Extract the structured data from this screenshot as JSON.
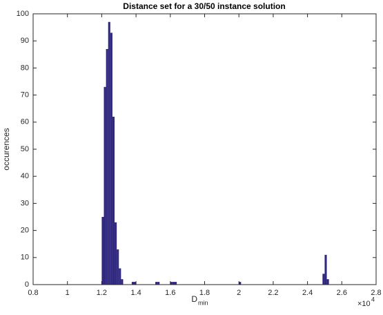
{
  "chart_data": {
    "type": "histogram",
    "title": "Distance set for a 30/50 instance solution",
    "xlabel": {
      "text": "D",
      "subscript": "min"
    },
    "ylabel": "occurences",
    "x_multiplier": {
      "base": "×10",
      "power": 4
    },
    "color": "#31297f",
    "bins": [
      1.2,
      1.2125,
      1.225,
      1.2375,
      1.25,
      1.2625,
      1.275,
      1.2875,
      1.3,
      1.3125,
      1.325,
      1.3375,
      1.35,
      1.3625,
      1.375,
      1.3875,
      1.4,
      1.4125,
      1.425,
      1.4375,
      1.45,
      1.4625,
      1.475,
      1.4875,
      1.5,
      1.5125,
      1.525,
      1.5375,
      1.55,
      1.5625,
      1.575,
      1.5875,
      1.6,
      1.6125,
      1.625,
      1.6375,
      1.65,
      1.6625,
      1.675,
      1.6875,
      1.7,
      1.7125,
      1.725,
      1.7375,
      1.75,
      1.7625,
      1.775,
      1.7875,
      1.8,
      1.8125,
      1.825,
      1.8375,
      1.85,
      1.8625,
      1.875,
      1.8875,
      1.9,
      1.9125,
      1.925,
      1.9375,
      1.95,
      1.9625,
      1.975,
      1.9875,
      2,
      2.0125,
      2.025,
      2.0375,
      2.05,
      2.0625,
      2.075,
      2.0875,
      2.1,
      2.1125,
      2.125,
      2.1375,
      2.15,
      2.1625,
      2.175,
      2.1875,
      2.2,
      2.2125,
      2.225,
      2.2375,
      2.25,
      2.2625,
      2.275,
      2.2875,
      2.3,
      2.3125,
      2.325,
      2.3375,
      2.35,
      2.3625,
      2.375,
      2.3875,
      2.4,
      2.4125,
      2.425,
      2.4375,
      2.45,
      2.4625,
      2.475,
      2.4875,
      2.5,
      2.5125,
      2.525
    ],
    "values": [
      25,
      73,
      87,
      97,
      93,
      62,
      23,
      13,
      6,
      2,
      0,
      0,
      0,
      0,
      1,
      1,
      0,
      0,
      0,
      0,
      0,
      0,
      0,
      0,
      0,
      1,
      1,
      0,
      0,
      0,
      0,
      0,
      1,
      1,
      1,
      0,
      0,
      0,
      0,
      0,
      0,
      0,
      0,
      0,
      0,
      0,
      0,
      0,
      0,
      0,
      0,
      0,
      0,
      0,
      0,
      0,
      0,
      0,
      0,
      0,
      0,
      0,
      0,
      0,
      1,
      0,
      0,
      0,
      0,
      0,
      0,
      0,
      0,
      0,
      0,
      0,
      0,
      0,
      0,
      0,
      0,
      0,
      0,
      0,
      0,
      0,
      0,
      0,
      0,
      0,
      0,
      0,
      0,
      0,
      0,
      0,
      0,
      0,
      0,
      0,
      0,
      0,
      0,
      4,
      11,
      2
    ],
    "xlim": [
      0.8,
      2.8
    ],
    "xticks": [
      0.8,
      1,
      1.2,
      1.4,
      1.6,
      1.8,
      2,
      2.2,
      2.4,
      2.6,
      2.8
    ],
    "ylim": [
      0,
      100
    ],
    "yticks": [
      0,
      10,
      20,
      30,
      40,
      50,
      60,
      70,
      80,
      90,
      100
    ],
    "grid": false
  }
}
